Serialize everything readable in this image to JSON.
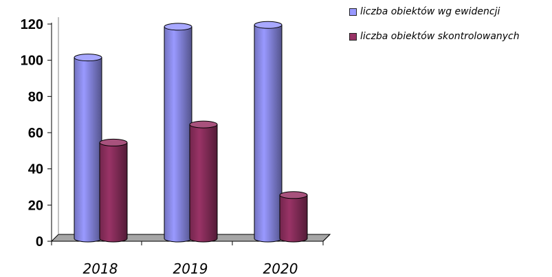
{
  "chart_data": {
    "type": "bar",
    "categories": [
      "2018",
      "2019",
      "2020"
    ],
    "series": [
      {
        "name": "liczba obiektów wg ewidencji",
        "values": [
          100,
          117,
          118
        ],
        "color": "#9999FF"
      },
      {
        "name": "liczba obiektów skontrolowanych",
        "values": [
          53,
          63,
          24
        ],
        "color": "#993366"
      }
    ],
    "y_ticks": [
      "0",
      "20",
      "40",
      "60",
      "80",
      "100",
      "120"
    ],
    "ylim": [
      0,
      120
    ],
    "title": "",
    "xlabel": "",
    "ylabel": "",
    "grid": false,
    "legend_position": "top-right",
    "style": "3d-cylinder"
  }
}
